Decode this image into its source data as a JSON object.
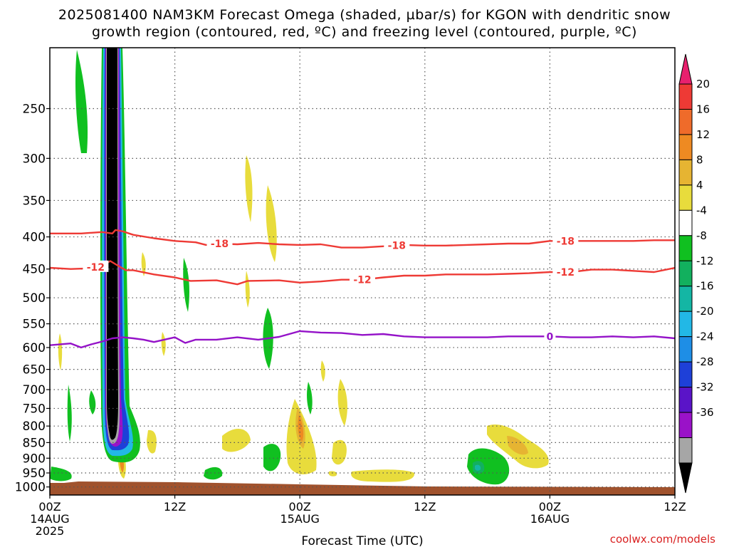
{
  "title": {
    "line1": "2025081400 NAM3KM Forecast Omega (shaded, µbar/s) for KGON with dendritic snow",
    "line2": "growth region (contoured, red, ºC) and freezing level (contoured, purple, ºC)"
  },
  "xlabel": "Forecast Time (UTC)",
  "credit": "coolwx.com/models",
  "chart_data": {
    "type": "heatmap",
    "title": "2025081400 NAM3KM Forecast Omega (shaded, µbar/s) for KGON with dendritic snow growth region (contoured, red, ºC) and freezing level (contoured, purple, ºC)",
    "xlabel": "Forecast Time (UTC)",
    "ylabel": "",
    "x_range_hours": [
      0,
      60
    ],
    "y_range_hPa": [
      200,
      1030
    ],
    "y_scale": "log",
    "grid": true,
    "x_ticks": [
      {
        "hour": 0,
        "lines": [
          "00Z",
          "14AUG",
          "2025"
        ]
      },
      {
        "hour": 12,
        "lines": [
          "12Z"
        ]
      },
      {
        "hour": 24,
        "lines": [
          "00Z",
          "15AUG"
        ]
      },
      {
        "hour": 36,
        "lines": [
          "12Z"
        ]
      },
      {
        "hour": 48,
        "lines": [
          "00Z",
          "16AUG"
        ]
      },
      {
        "hour": 60,
        "lines": [
          "12Z"
        ]
      }
    ],
    "y_ticks": [
      250,
      300,
      350,
      400,
      450,
      500,
      550,
      600,
      650,
      700,
      750,
      800,
      850,
      900,
      950,
      1000
    ],
    "colorbar": {
      "labels": [
        "20",
        "16",
        "12",
        "8",
        "4",
        "-4",
        "-8",
        "-12",
        "-16",
        "-20",
        "-24",
        "-28",
        "-32",
        "-36"
      ],
      "colors": [
        "#e8206e",
        "#ee3a35",
        "#ef6b2a",
        "#ee8a22",
        "#e6b432",
        "#e8dc3c",
        "#ffffff",
        "#10c020",
        "#12b05e",
        "#14b6a4",
        "#22b8e6",
        "#1e8ee6",
        "#1e40d8",
        "#5a14c8",
        "#9a12c8",
        "#a6a6a6",
        "#000000"
      ]
    },
    "contours": [
      {
        "kind": "temperature",
        "level": -18,
        "color": "#ee3a35",
        "points": [
          [
            0,
            395
          ],
          [
            3,
            395
          ],
          [
            5,
            393
          ],
          [
            6,
            395
          ],
          [
            6.3,
            390
          ],
          [
            7,
            392
          ],
          [
            8,
            397
          ],
          [
            10,
            402
          ],
          [
            12,
            406
          ],
          [
            14,
            408
          ],
          [
            15,
            412
          ],
          [
            16,
            410
          ],
          [
            18,
            411
          ],
          [
            20,
            409
          ],
          [
            22,
            411
          ],
          [
            24,
            412
          ],
          [
            26,
            411
          ],
          [
            28,
            416
          ],
          [
            30,
            416
          ],
          [
            32,
            414
          ],
          [
            34,
            412
          ],
          [
            36,
            413
          ],
          [
            38,
            413
          ],
          [
            40,
            412
          ],
          [
            42,
            411
          ],
          [
            44,
            410
          ],
          [
            46,
            410
          ],
          [
            48,
            406
          ],
          [
            50,
            406
          ],
          [
            52,
            406
          ],
          [
            54,
            406
          ],
          [
            56,
            406
          ],
          [
            58,
            405
          ],
          [
            60,
            405
          ]
        ],
        "labels": [
          {
            "hour": 16.3,
            "text": "-18"
          },
          {
            "hour": 33.3,
            "text": "-18"
          },
          {
            "hour": 49.5,
            "text": "-18"
          }
        ]
      },
      {
        "kind": "temperature",
        "level": -12,
        "color": "#ee3a35",
        "points": [
          [
            0,
            448
          ],
          [
            2,
            450
          ],
          [
            3.5,
            449
          ],
          [
            5,
            445
          ],
          [
            5.8,
            437
          ],
          [
            6.5,
            444
          ],
          [
            7.3,
            452
          ],
          [
            8,
            452
          ],
          [
            10,
            459
          ],
          [
            12,
            464
          ],
          [
            13.5,
            470
          ],
          [
            16,
            469
          ],
          [
            18,
            476
          ],
          [
            19,
            470
          ],
          [
            22,
            469
          ],
          [
            24,
            473
          ],
          [
            26,
            471
          ],
          [
            28,
            468
          ],
          [
            30,
            468
          ],
          [
            32,
            464
          ],
          [
            34,
            461
          ],
          [
            36,
            461
          ],
          [
            38,
            459
          ],
          [
            40,
            459
          ],
          [
            42,
            459
          ],
          [
            44,
            458
          ],
          [
            46,
            457
          ],
          [
            48,
            455
          ],
          [
            50,
            455
          ],
          [
            52,
            451
          ],
          [
            54,
            451
          ],
          [
            56,
            453
          ],
          [
            58,
            455
          ],
          [
            60,
            448
          ]
        ],
        "labels": [
          {
            "hour": 4.4,
            "text": "-12"
          },
          {
            "hour": 30,
            "text": "-12"
          },
          {
            "hour": 49.5,
            "text": "-12"
          }
        ]
      },
      {
        "kind": "freezing",
        "level": 0,
        "color": "#9412c8",
        "points": [
          [
            0,
            595
          ],
          [
            2,
            591
          ],
          [
            3,
            600
          ],
          [
            4,
            593
          ],
          [
            5,
            587
          ],
          [
            6,
            580
          ],
          [
            7,
            578
          ],
          [
            8,
            580
          ],
          [
            9,
            583
          ],
          [
            10,
            588
          ],
          [
            12,
            578
          ],
          [
            13,
            590
          ],
          [
            14,
            583
          ],
          [
            16,
            583
          ],
          [
            18,
            578
          ],
          [
            20,
            583
          ],
          [
            22,
            577
          ],
          [
            24,
            565
          ],
          [
            26,
            568
          ],
          [
            28,
            569
          ],
          [
            30,
            573
          ],
          [
            32,
            571
          ],
          [
            34,
            576
          ],
          [
            36,
            578
          ],
          [
            38,
            578
          ],
          [
            40,
            578
          ],
          [
            42,
            578
          ],
          [
            44,
            576
          ],
          [
            46,
            576
          ],
          [
            48,
            576
          ],
          [
            50,
            578
          ],
          [
            52,
            578
          ],
          [
            54,
            576
          ],
          [
            56,
            578
          ],
          [
            58,
            576
          ],
          [
            60,
            580
          ]
        ],
        "labels": [
          {
            "hour": 48,
            "text": "0"
          }
        ]
      }
    ]
  }
}
